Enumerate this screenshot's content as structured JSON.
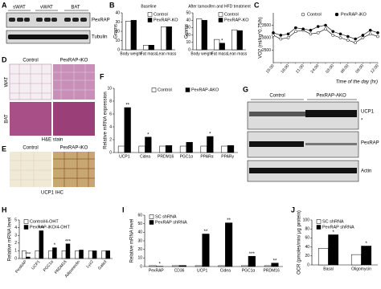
{
  "chart_data": [
    {
      "type": "bar",
      "panel": "B",
      "title": "Baseline",
      "ylabel": "Grams",
      "legend": "top-right",
      "categories": [
        "Body weight",
        "Fat mass",
        "Lean mass"
      ],
      "series": [
        {
          "name": "Control",
          "color": "#ffffff",
          "values": [
            31,
            5,
            25
          ]
        },
        {
          "name": "PexRAP-KO",
          "color": "#000000",
          "values": [
            32,
            5,
            25
          ]
        }
      ],
      "ylim": [
        0,
        40
      ],
      "yticks": [
        0,
        10,
        20,
        30,
        40
      ]
    },
    {
      "type": "bar",
      "title": "After tamoxifen and HFD treatment",
      "ylabel": "Grams",
      "legend": "top-right",
      "categories": [
        "Body weight",
        "Fat mass",
        "Lean mass"
      ],
      "series": [
        {
          "name": "Control",
          "color": "#ffffff",
          "values": [
            42,
            14,
            27
          ]
        },
        {
          "name": "PexRAP-KO",
          "color": "#000000",
          "values": [
            40,
            9,
            26
          ],
          "stars": [
            null,
            "*",
            null
          ]
        }
      ],
      "ylim": [
        0,
        50
      ],
      "yticks": [
        0,
        10,
        20,
        30,
        40,
        50
      ]
    },
    {
      "type": "line",
      "panel": "C",
      "ylabel": "VO2 (ml/kg^0.75/h)",
      "xlabel": "Time of the day (hr)",
      "legend": "top",
      "categories": [
        "15:00",
        null,
        "18:00",
        null,
        "21:00",
        null,
        "24:00",
        null,
        "03:00",
        null,
        "06:00",
        null,
        "09:00",
        null,
        "12:00"
      ],
      "series": [
        {
          "name": "Control",
          "color": "#ffffff",
          "values": [
            3100,
            2950,
            3000,
            3250,
            3300,
            3150,
            3200,
            3350,
            3100,
            3000,
            2900,
            2800,
            3000,
            3150,
            3050
          ]
        },
        {
          "name": "PexRAP-iKO",
          "color": "#000000",
          "values": [
            3200,
            3100,
            3150,
            3400,
            3350,
            3300,
            3450,
            3500,
            3250,
            3150,
            3050,
            2950,
            3100,
            3300,
            3200
          ]
        }
      ],
      "ylim": [
        2000,
        4000
      ],
      "yticks": [
        2500,
        3000,
        3500
      ]
    },
    {
      "type": "bar",
      "panel": "F",
      "ylabel": "Relative mRNA expression",
      "legend": "top",
      "categories": [
        "UCP1",
        "Cidea",
        "PRDM16",
        "PGC1α",
        "PPARα",
        "PPARγ"
      ],
      "series": [
        {
          "name": "Control",
          "color": "#ffffff",
          "values": [
            1,
            1,
            1,
            1,
            1,
            1
          ]
        },
        {
          "name": "PexRAP-AKO",
          "color": "#000000",
          "values": [
            7,
            2.4,
            1.1,
            1.6,
            2.5,
            1.1
          ],
          "stars": [
            "**",
            "*",
            null,
            null,
            "*",
            null
          ]
        }
      ],
      "ylim": [
        0,
        10
      ],
      "yticks": [
        0,
        2,
        4,
        6,
        8,
        10
      ]
    },
    {
      "type": "bar",
      "panel": "H",
      "ylabel": "Relative mRNA level",
      "legend": "top-left",
      "rotate": true,
      "categories": [
        "PexRAP",
        "UCP1",
        "PGC1α",
        "PRDM16",
        "Adiponectin",
        "Lyz2",
        "Gata3"
      ],
      "series": [
        {
          "name": "Control/4-OHT",
          "color": "#ffffff",
          "values": [
            1,
            1,
            1,
            1,
            1,
            1,
            1
          ]
        },
        {
          "name": "PexRAP-iKO/4-OHT",
          "color": "#000000",
          "values": [
            0.2,
            3.6,
            1.4,
            1.9,
            1.1,
            1.0,
            1.0
          ],
          "stars": [
            "***",
            "***",
            "*",
            "***",
            null,
            null,
            null
          ]
        }
      ],
      "ylim": [
        0,
        5
      ],
      "yticks": [
        0,
        1,
        2,
        3,
        4,
        5
      ]
    },
    {
      "type": "bar",
      "panel": "I",
      "ylabel": "Relative mRNA level",
      "legend": "top-left",
      "categories": [
        "PexRAP",
        "CD36",
        "UCP1",
        "Cidea",
        "PGC1α",
        "PRDM16"
      ],
      "series": [
        {
          "name": "SC shRNA",
          "color": "#ffffff",
          "values": [
            1,
            1,
            1,
            1,
            1,
            1
          ]
        },
        {
          "name": "PexRAP shRNA",
          "color": "#000000",
          "values": [
            0.3,
            1.2,
            38,
            51,
            12,
            4
          ],
          "stars": [
            "*",
            null,
            "**",
            "**",
            "***",
            "**"
          ]
        }
      ],
      "ylim": [
        0,
        60
      ],
      "yticks": [
        0,
        10,
        20,
        30,
        40,
        50,
        60
      ]
    },
    {
      "type": "bar",
      "panel": "J",
      "ylabel": "OCR (pmoles/min/ μg protein)",
      "legend": "top-left",
      "categories": [
        "Basal",
        "Oligomycin"
      ],
      "series": [
        {
          "name": "SC shRNA",
          "color": "#ffffff",
          "values": [
            37,
            23
          ]
        },
        {
          "name": "PexRAP shRNA",
          "color": "#000000",
          "values": [
            67,
            42
          ],
          "stars": [
            "*",
            "*"
          ]
        }
      ],
      "ylim": [
        0,
        100
      ],
      "yticks": [
        0,
        20,
        40,
        60,
        80,
        100
      ]
    }
  ],
  "images": {
    "A": {
      "panel": "A",
      "lanes": [
        "sWAT",
        "vWAT",
        "BAT"
      ],
      "rows": [
        "PexRAP",
        "Tubulin"
      ]
    },
    "D": {
      "panel": "D",
      "columns": [
        "Control",
        "PexRAP-iKO"
      ],
      "rows": [
        "WAT",
        "BAT"
      ],
      "caption": "H&E stain"
    },
    "E": {
      "panel": "E",
      "columns": [
        "Control",
        "PexRAP-iKO"
      ],
      "caption": "UCP1 IHC"
    },
    "G": {
      "panel": "G",
      "groups": [
        "Control",
        "PexRAP-AKO"
      ],
      "rows": [
        "UCP1",
        "PexRAP",
        "Actin"
      ],
      "marker": "*"
    }
  }
}
